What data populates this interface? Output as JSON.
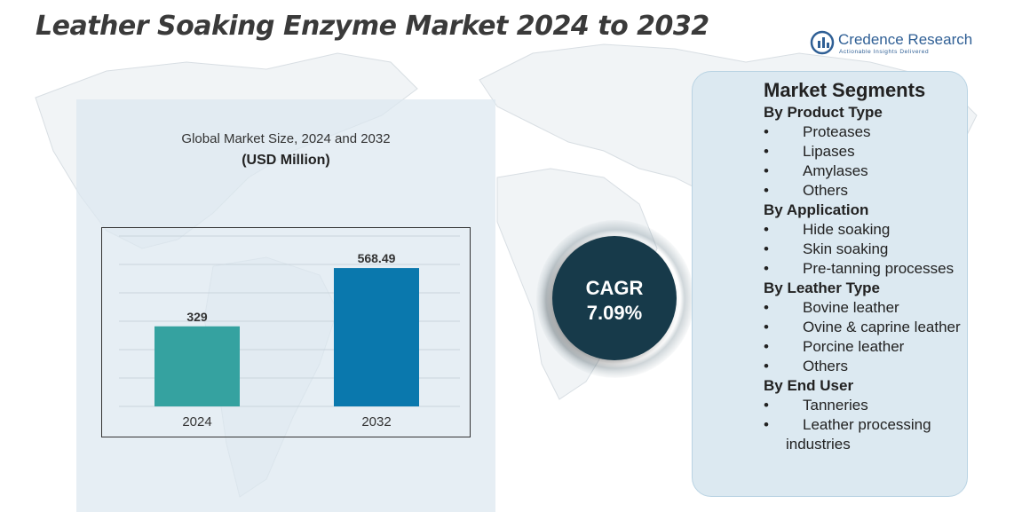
{
  "title": "Leather Soaking Enzyme Market 2024 to 2032",
  "brand": {
    "name": "Credence Research",
    "tagline": "Actionable Insights Delivered",
    "color": "#2f5f95"
  },
  "chart_header": {
    "subtitle": "Global Market Size, 2024 and 2032",
    "unit": "(USD Million)"
  },
  "chart_data": {
    "type": "bar",
    "title": "Global Market Size, 2024 and 2032",
    "ylabel": "(USD Million)",
    "categories": [
      "2024",
      "2032"
    ],
    "values": [
      329,
      568.49
    ],
    "value_labels": [
      "329",
      "568.49"
    ],
    "colors": [
      "#35a2a0",
      "#0a78ad"
    ],
    "ylim": [
      0,
      700
    ],
    "grid": true
  },
  "cagr": {
    "label": "CAGR",
    "value": "7.09%"
  },
  "segments": {
    "title": "Market Segments",
    "groups": [
      {
        "heading": "By Product Type",
        "items": [
          "Proteases",
          "Lipases",
          "Amylases",
          "Others"
        ]
      },
      {
        "heading": " By Application",
        "items": [
          "Hide soaking",
          "Skin soaking",
          "Pre-tanning processes"
        ]
      },
      {
        "heading": "By Leather Type",
        "items": [
          "Bovine leather",
          "Ovine & caprine leather",
          "Porcine leather",
          "Others"
        ]
      },
      {
        "heading": "By End User",
        "items": [
          "Tanneries",
          "Leather processing industries"
        ]
      }
    ]
  },
  "icons": [
    "world-map-background",
    "credence-logo-icon"
  ]
}
